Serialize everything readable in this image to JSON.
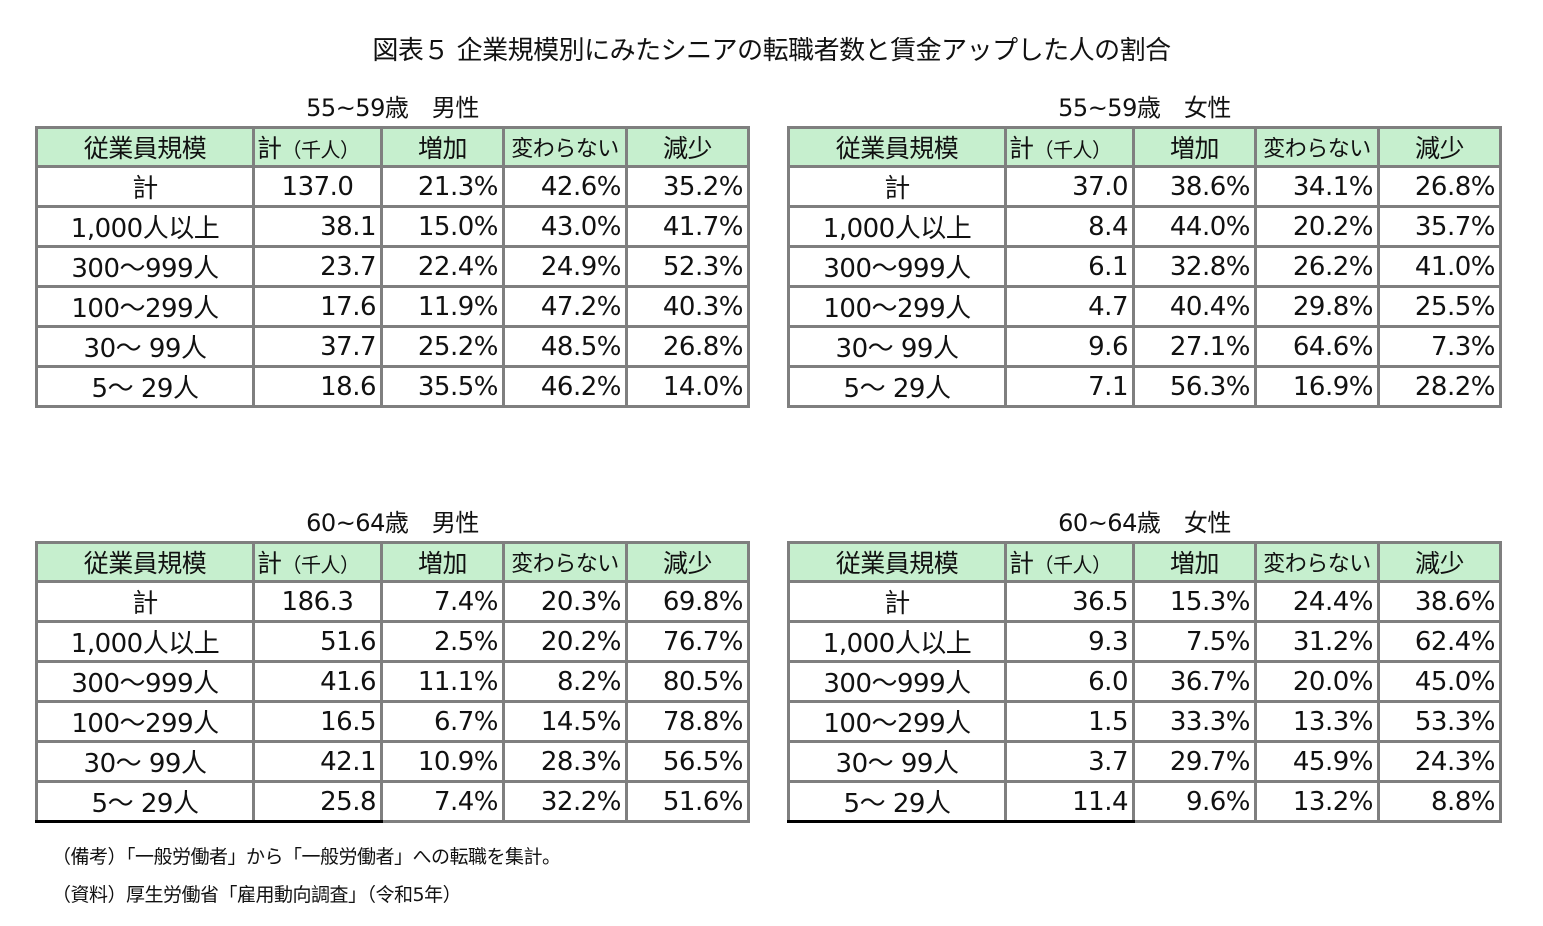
{
  "title": "図表５ 企業規模別にみたシニアの転職者数と賃金アップした人の割合",
  "header_color": "#c6efce",
  "border_color": "#7f7f7f",
  "columns": [
    "従業員規模",
    "計",
    "（千人）",
    "増加",
    "変わらない",
    "減少"
  ],
  "tables": [
    {
      "caption": "55~59歳　男性",
      "rows": [
        {
          "label": "計",
          "total": "137.0",
          "inc": "21.3%",
          "same": "42.6%",
          "dec": "35.2%"
        },
        {
          "label": "1,000人以上",
          "total": "38.1",
          "inc": "15.0%",
          "same": "43.0%",
          "dec": "41.7%"
        },
        {
          "label": "300～999人",
          "total": "23.7",
          "inc": "22.4%",
          "same": "24.9%",
          "dec": "52.3%"
        },
        {
          "label": "100～299人",
          "total": "17.6",
          "inc": "11.9%",
          "same": "47.2%",
          "dec": "40.3%"
        },
        {
          "label": "30～ 99人",
          "total": "37.7",
          "inc": "25.2%",
          "same": "48.5%",
          "dec": "26.8%"
        },
        {
          "label": "5～ 29人",
          "total": "18.6",
          "inc": "35.5%",
          "same": "46.2%",
          "dec": "14.0%"
        }
      ]
    },
    {
      "caption": "55~59歳　女性",
      "rows": [
        {
          "label": "計",
          "total": "37.0",
          "inc": "38.6%",
          "same": "34.1%",
          "dec": "26.8%"
        },
        {
          "label": "1,000人以上",
          "total": "8.4",
          "inc": "44.0%",
          "same": "20.2%",
          "dec": "35.7%"
        },
        {
          "label": "300～999人",
          "total": "6.1",
          "inc": "32.8%",
          "same": "26.2%",
          "dec": "41.0%"
        },
        {
          "label": "100～299人",
          "total": "4.7",
          "inc": "40.4%",
          "same": "29.8%",
          "dec": "25.5%"
        },
        {
          "label": "30～ 99人",
          "total": "9.6",
          "inc": "27.1%",
          "same": "64.6%",
          "dec": "7.3%"
        },
        {
          "label": "5～ 29人",
          "total": "7.1",
          "inc": "56.3%",
          "same": "16.9%",
          "dec": "28.2%"
        }
      ]
    },
    {
      "caption": "60~64歳　男性",
      "rows": [
        {
          "label": "計",
          "total": "186.3",
          "inc": "7.4%",
          "same": "20.3%",
          "dec": "69.8%"
        },
        {
          "label": "1,000人以上",
          "total": "51.6",
          "inc": "2.5%",
          "same": "20.2%",
          "dec": "76.7%"
        },
        {
          "label": "300～999人",
          "total": "41.6",
          "inc": "11.1%",
          "same": "8.2%",
          "dec": "80.5%"
        },
        {
          "label": "100～299人",
          "total": "16.5",
          "inc": "6.7%",
          "same": "14.5%",
          "dec": "78.8%"
        },
        {
          "label": "30～ 99人",
          "total": "42.1",
          "inc": "10.9%",
          "same": "28.3%",
          "dec": "56.5%"
        },
        {
          "label": "5～ 29人",
          "total": "25.8",
          "inc": "7.4%",
          "same": "32.2%",
          "dec": "51.6%"
        }
      ]
    },
    {
      "caption": "60~64歳　女性",
      "rows": [
        {
          "label": "計",
          "total": "36.5",
          "inc": "15.3%",
          "same": "24.4%",
          "dec": "38.6%"
        },
        {
          "label": "1,000人以上",
          "total": "9.3",
          "inc": "7.5%",
          "same": "31.2%",
          "dec": "62.4%"
        },
        {
          "label": "300～999人",
          "total": "6.0",
          "inc": "36.7%",
          "same": "20.0%",
          "dec": "45.0%"
        },
        {
          "label": "100～299人",
          "total": "1.5",
          "inc": "33.3%",
          "same": "13.3%",
          "dec": "53.3%"
        },
        {
          "label": "30～ 99人",
          "total": "3.7",
          "inc": "29.7%",
          "same": "45.9%",
          "dec": "24.3%"
        },
        {
          "label": "5～ 29人",
          "total": "11.4",
          "inc": "9.6%",
          "same": "13.2%",
          "dec": "8.8%"
        }
      ]
    }
  ],
  "notes": [
    "（備考）「一般労働者」から「一般労働者」への転職を集計。",
    "（資料）厚生労働省「雇用動向調査」（令和5年）"
  ]
}
